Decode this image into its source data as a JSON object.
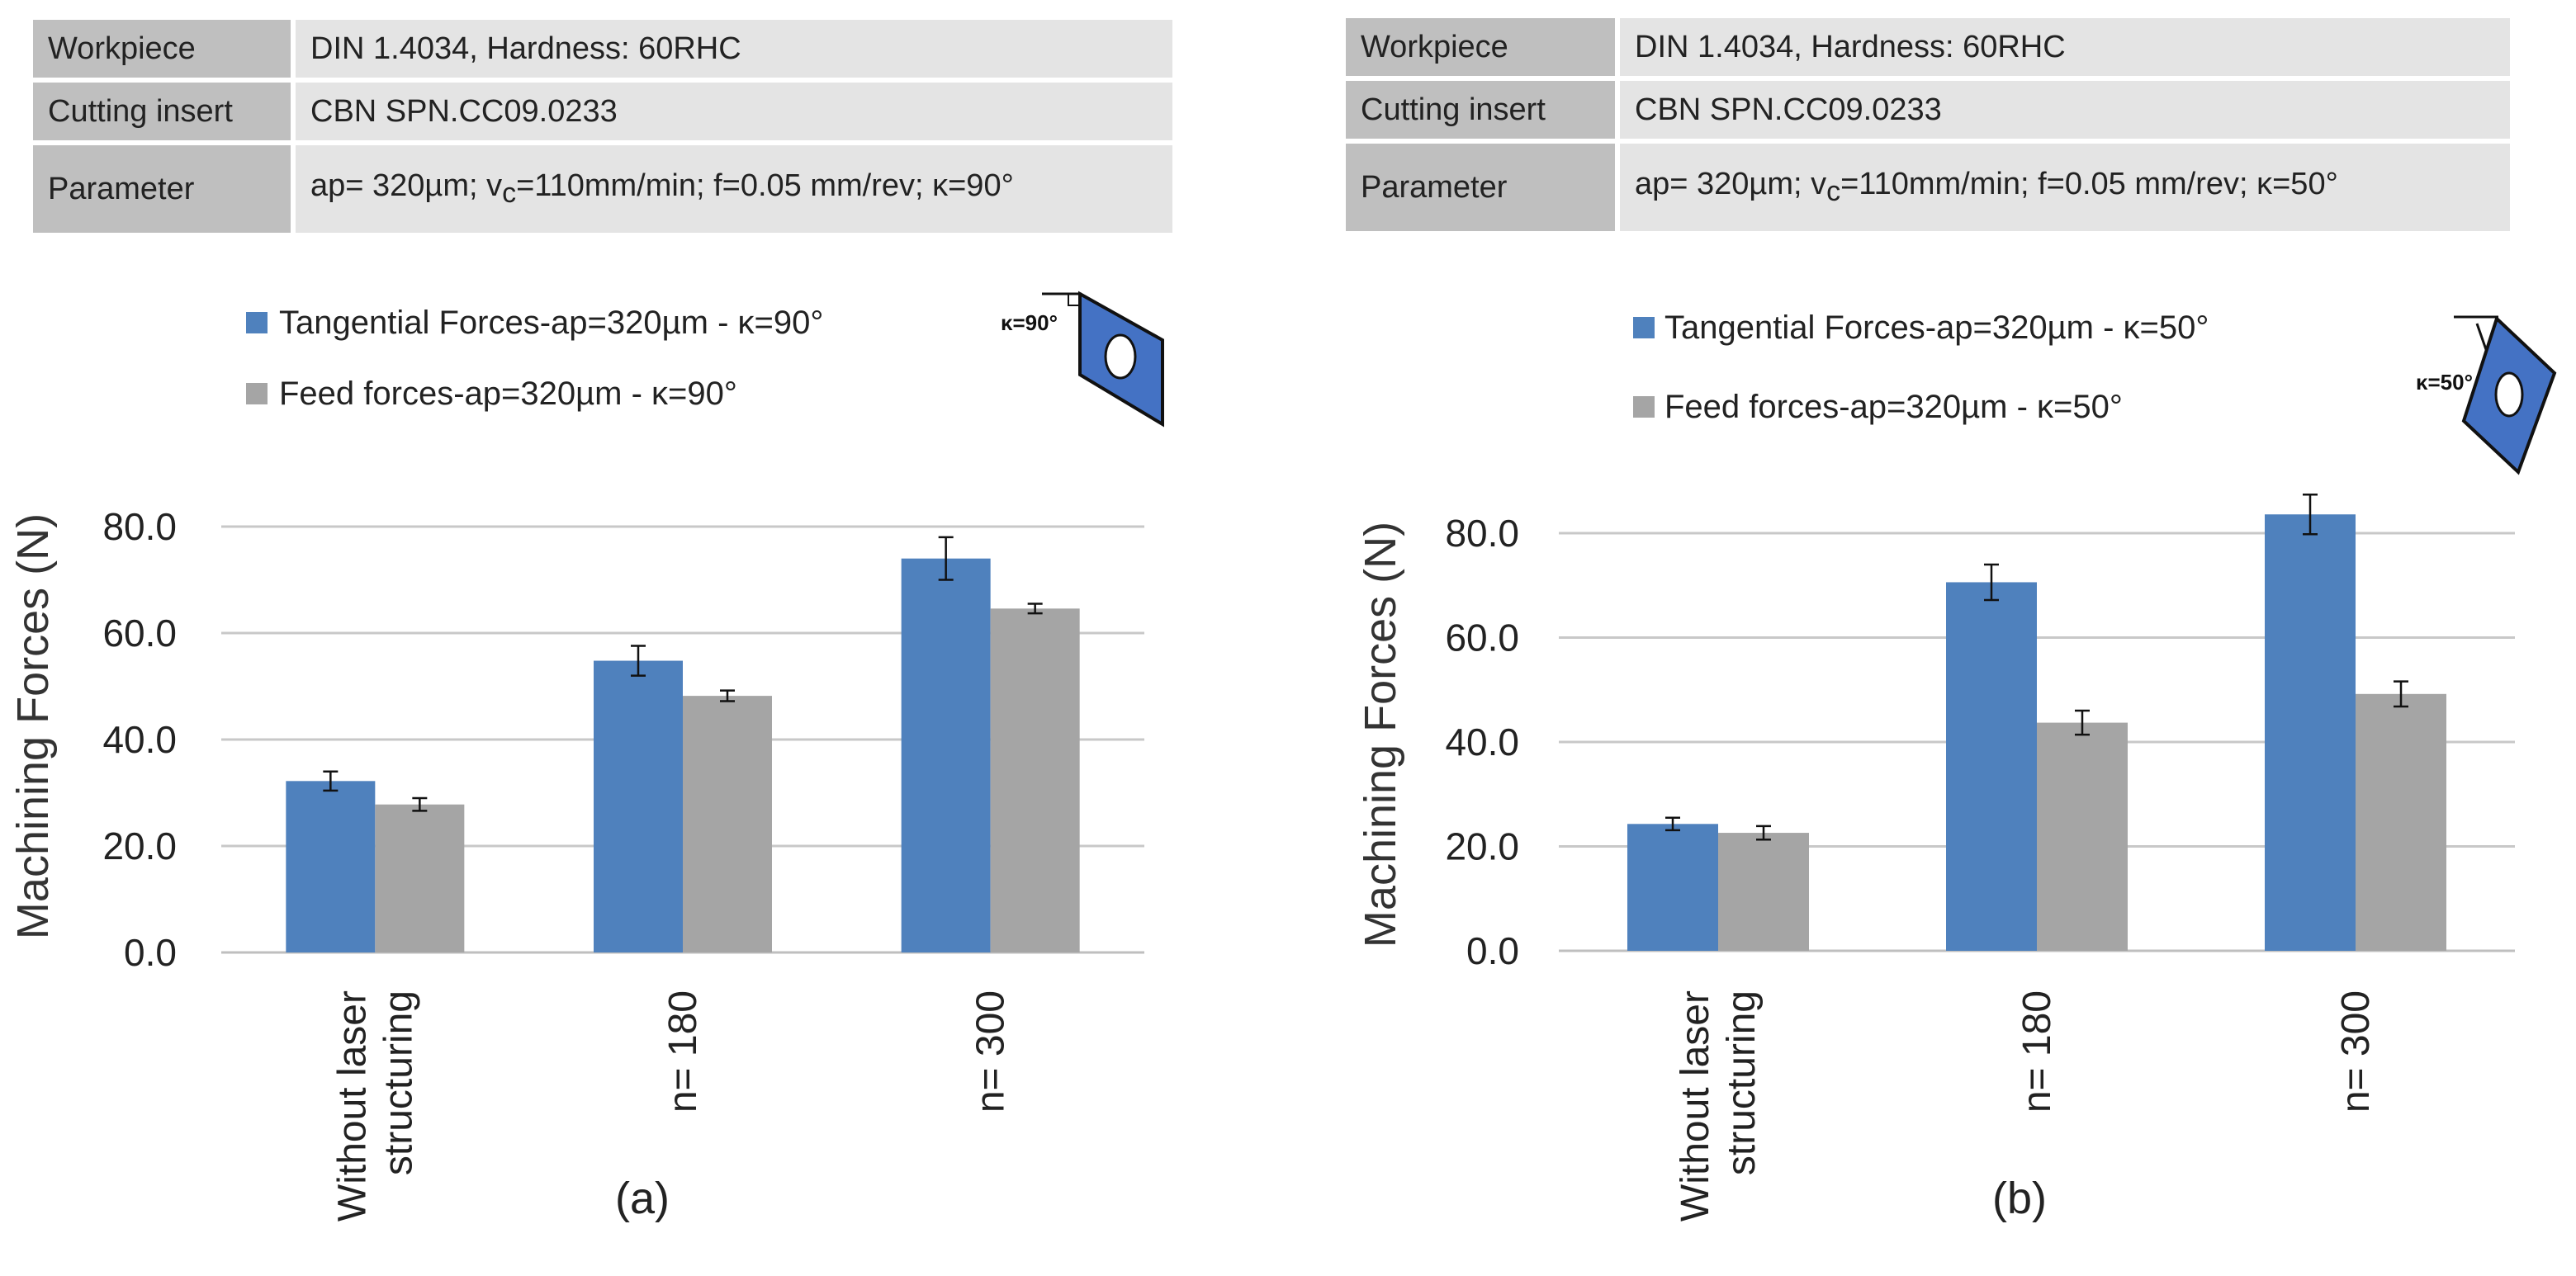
{
  "panels": [
    {
      "label": "(a)",
      "table": [
        {
          "key": "Workpiece",
          "value": "DIN 1.4034, Hardness: 60RHC"
        },
        {
          "key": "Cutting insert",
          "value": "CBN SPN.CC09.0233"
        },
        {
          "key": "Parameter",
          "value_pre": "ap= 320µm; v",
          "value_sub": "c",
          "value_post": "=110mm/min; f=0.05 mm/rev; κ=90°"
        }
      ],
      "insert_label": "κ=90°"
    },
    {
      "label": "(b)",
      "table": [
        {
          "key": "Workpiece",
          "value": "DIN 1.4034, Hardness: 60RHC"
        },
        {
          "key": "Cutting insert",
          "value": "CBN SPN.CC09.0233"
        },
        {
          "key": "Parameter",
          "value_pre": "ap= 320µm; v",
          "value_sub": "c",
          "value_post": "=110mm/min; f=0.05 mm/rev; κ=50°"
        }
      ],
      "insert_label": "κ=50°"
    }
  ],
  "chart_data": [
    {
      "type": "bar",
      "ylabel": "Machining Forces (N)",
      "ylim": [
        0,
        80
      ],
      "yticks": [
        "0.0",
        "20.0",
        "40.0",
        "60.0",
        "80.0"
      ],
      "grid": true,
      "legend_position": "top",
      "categories": [
        "Without laser structuring",
        "n= 180",
        "n= 300"
      ],
      "category_lines": [
        [
          "Without laser",
          "structuring"
        ],
        [
          "n= 180"
        ],
        [
          "n= 300"
        ]
      ],
      "series": [
        {
          "name": "Tangential Forces-ap=320µm - κ=90°",
          "color": "#4f81bd",
          "values": [
            32.2,
            54.8,
            74.0
          ],
          "errors": [
            1.8,
            2.8,
            4.0
          ]
        },
        {
          "name": "Feed forces-ap=320µm - κ=90°",
          "color": "#a5a5a5",
          "values": [
            27.8,
            48.2,
            64.6
          ],
          "errors": [
            1.2,
            1.0,
            0.9
          ]
        }
      ]
    },
    {
      "type": "bar",
      "ylabel": "Machining Forces (N)",
      "ylim": [
        0,
        80
      ],
      "yticks": [
        "0.0",
        "20.0",
        "40.0",
        "60.0",
        "80.0"
      ],
      "grid": true,
      "legend_position": "top",
      "categories": [
        "Without laser structuring",
        "n= 180",
        "n= 300"
      ],
      "category_lines": [
        [
          "Without laser",
          "structuring"
        ],
        [
          "n= 180"
        ],
        [
          "n= 300"
        ]
      ],
      "series": [
        {
          "name": "Tangential Forces-ap=320µm - κ=50°",
          "color": "#4f81bd",
          "values": [
            24.3,
            70.6,
            83.6
          ],
          "errors": [
            1.2,
            3.4,
            3.8
          ]
        },
        {
          "name": "Feed forces-ap=320µm - κ=50°",
          "color": "#a5a5a5",
          "values": [
            22.6,
            43.7,
            49.2
          ],
          "errors": [
            1.3,
            2.3,
            2.4
          ]
        }
      ]
    }
  ]
}
